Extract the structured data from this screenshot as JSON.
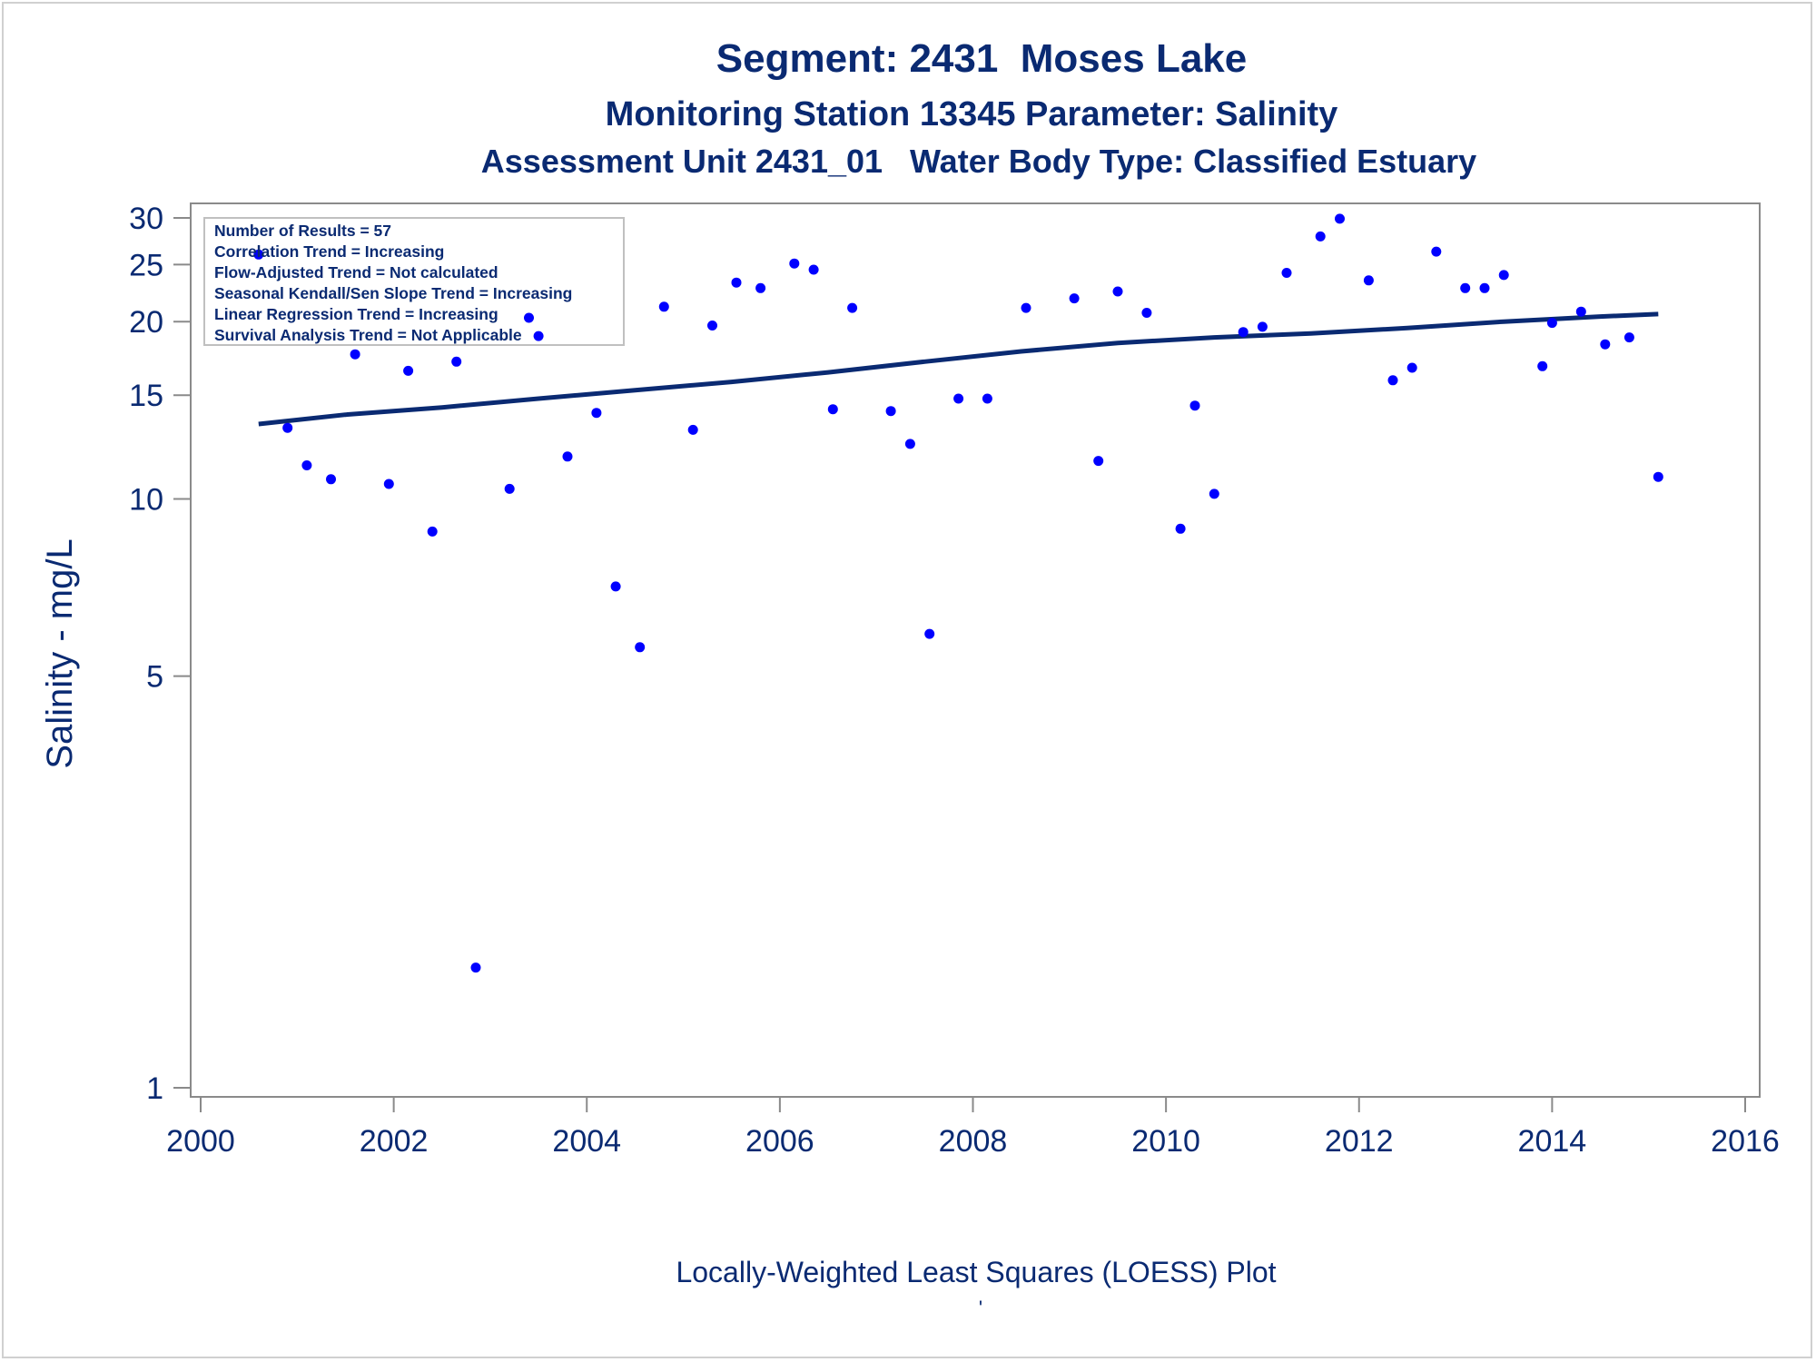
{
  "chart_data": {
    "type": "scatter",
    "title": "Segment: 2431  Moses Lake",
    "subtitle_1": "Monitoring Station 13345 Parameter: Salinity",
    "subtitle_2": "Assessment Unit 2431_01   Water Body Type: Classified Estuary",
    "xlabel": "",
    "ylabel": "Salinity - mg/L",
    "footnote": "Locally-Weighted Least Squares (LOESS) Plot",
    "footnote_mark": "'",
    "y_scale": "log",
    "xlim": [
      2000,
      2016
    ],
    "ylim": [
      1,
      30
    ],
    "x_ticks": [
      "2000",
      "2002",
      "2004",
      "2006",
      "2008",
      "2010",
      "2012",
      "2014",
      "2016"
    ],
    "y_ticks": [
      "1",
      "5",
      "10",
      "15",
      "20",
      "25",
      "30"
    ],
    "grid": false,
    "colors": {
      "points": "#0000ff",
      "trend_line": "#0a2a72",
      "text": "#0a2a72",
      "axis": "#8a8a8a"
    },
    "inset_box": {
      "position": "top-left",
      "lines": [
        "Number of Results = 57",
        "Correlation Trend = Increasing",
        "Flow-Adjusted Trend = Not calculated",
        "Seasonal Kendall/Sen Slope Trend = Increasing",
        "Linear Regression Trend = Increasing",
        "Survival Analysis Trend = Not Applicable"
      ]
    },
    "series": [
      {
        "kind": "points",
        "points": [
          {
            "x": 2000.6,
            "y": 26.0
          },
          {
            "x": 2000.9,
            "y": 13.2
          },
          {
            "x": 2001.1,
            "y": 11.4
          },
          {
            "x": 2001.35,
            "y": 10.8
          },
          {
            "x": 2001.6,
            "y": 17.6
          },
          {
            "x": 2001.95,
            "y": 10.6
          },
          {
            "x": 2002.15,
            "y": 16.5
          },
          {
            "x": 2002.4,
            "y": 8.8
          },
          {
            "x": 2002.65,
            "y": 17.1
          },
          {
            "x": 2002.85,
            "y": 1.6
          },
          {
            "x": 2003.2,
            "y": 10.4
          },
          {
            "x": 2003.4,
            "y": 20.3
          },
          {
            "x": 2003.5,
            "y": 18.9
          },
          {
            "x": 2003.8,
            "y": 11.8
          },
          {
            "x": 2004.1,
            "y": 14.0
          },
          {
            "x": 2004.3,
            "y": 7.1
          },
          {
            "x": 2004.55,
            "y": 5.6
          },
          {
            "x": 2004.8,
            "y": 21.2
          },
          {
            "x": 2005.1,
            "y": 13.1
          },
          {
            "x": 2005.3,
            "y": 19.7
          },
          {
            "x": 2005.55,
            "y": 23.3
          },
          {
            "x": 2005.8,
            "y": 22.8
          },
          {
            "x": 2006.15,
            "y": 25.1
          },
          {
            "x": 2006.35,
            "y": 24.5
          },
          {
            "x": 2006.55,
            "y": 14.2
          },
          {
            "x": 2006.75,
            "y": 21.1
          },
          {
            "x": 2007.15,
            "y": 14.1
          },
          {
            "x": 2007.35,
            "y": 12.4
          },
          {
            "x": 2007.55,
            "y": 5.9
          },
          {
            "x": 2007.85,
            "y": 14.8
          },
          {
            "x": 2008.15,
            "y": 14.8
          },
          {
            "x": 2008.55,
            "y": 21.1
          },
          {
            "x": 2009.05,
            "y": 21.9
          },
          {
            "x": 2009.3,
            "y": 11.6
          },
          {
            "x": 2009.5,
            "y": 22.5
          },
          {
            "x": 2009.8,
            "y": 20.7
          },
          {
            "x": 2010.15,
            "y": 8.9
          },
          {
            "x": 2010.3,
            "y": 14.4
          },
          {
            "x": 2010.5,
            "y": 10.2
          },
          {
            "x": 2010.8,
            "y": 19.2
          },
          {
            "x": 2011.0,
            "y": 19.6
          },
          {
            "x": 2011.25,
            "y": 24.2
          },
          {
            "x": 2011.6,
            "y": 27.9
          },
          {
            "x": 2011.8,
            "y": 29.9
          },
          {
            "x": 2012.1,
            "y": 23.5
          },
          {
            "x": 2012.35,
            "y": 15.9
          },
          {
            "x": 2012.55,
            "y": 16.7
          },
          {
            "x": 2012.8,
            "y": 26.3
          },
          {
            "x": 2013.1,
            "y": 22.8
          },
          {
            "x": 2013.3,
            "y": 22.8
          },
          {
            "x": 2013.5,
            "y": 24.0
          },
          {
            "x": 2013.9,
            "y": 16.8
          },
          {
            "x": 2014.0,
            "y": 19.9
          },
          {
            "x": 2014.3,
            "y": 20.8
          },
          {
            "x": 2014.55,
            "y": 18.3
          },
          {
            "x": 2014.8,
            "y": 18.8
          },
          {
            "x": 2015.1,
            "y": 10.9
          }
        ]
      },
      {
        "kind": "loess_line",
        "points": [
          {
            "x": 2000.6,
            "y": 13.4
          },
          {
            "x": 2001.5,
            "y": 13.9
          },
          {
            "x": 2002.5,
            "y": 14.3
          },
          {
            "x": 2003.5,
            "y": 14.8
          },
          {
            "x": 2004.5,
            "y": 15.3
          },
          {
            "x": 2005.5,
            "y": 15.8
          },
          {
            "x": 2006.5,
            "y": 16.4
          },
          {
            "x": 2007.5,
            "y": 17.1
          },
          {
            "x": 2008.5,
            "y": 17.8
          },
          {
            "x": 2009.5,
            "y": 18.4
          },
          {
            "x": 2010.5,
            "y": 18.8
          },
          {
            "x": 2011.5,
            "y": 19.1
          },
          {
            "x": 2012.5,
            "y": 19.5
          },
          {
            "x": 2013.5,
            "y": 20.0
          },
          {
            "x": 2014.5,
            "y": 20.4
          },
          {
            "x": 2015.1,
            "y": 20.6
          }
        ]
      }
    ]
  }
}
